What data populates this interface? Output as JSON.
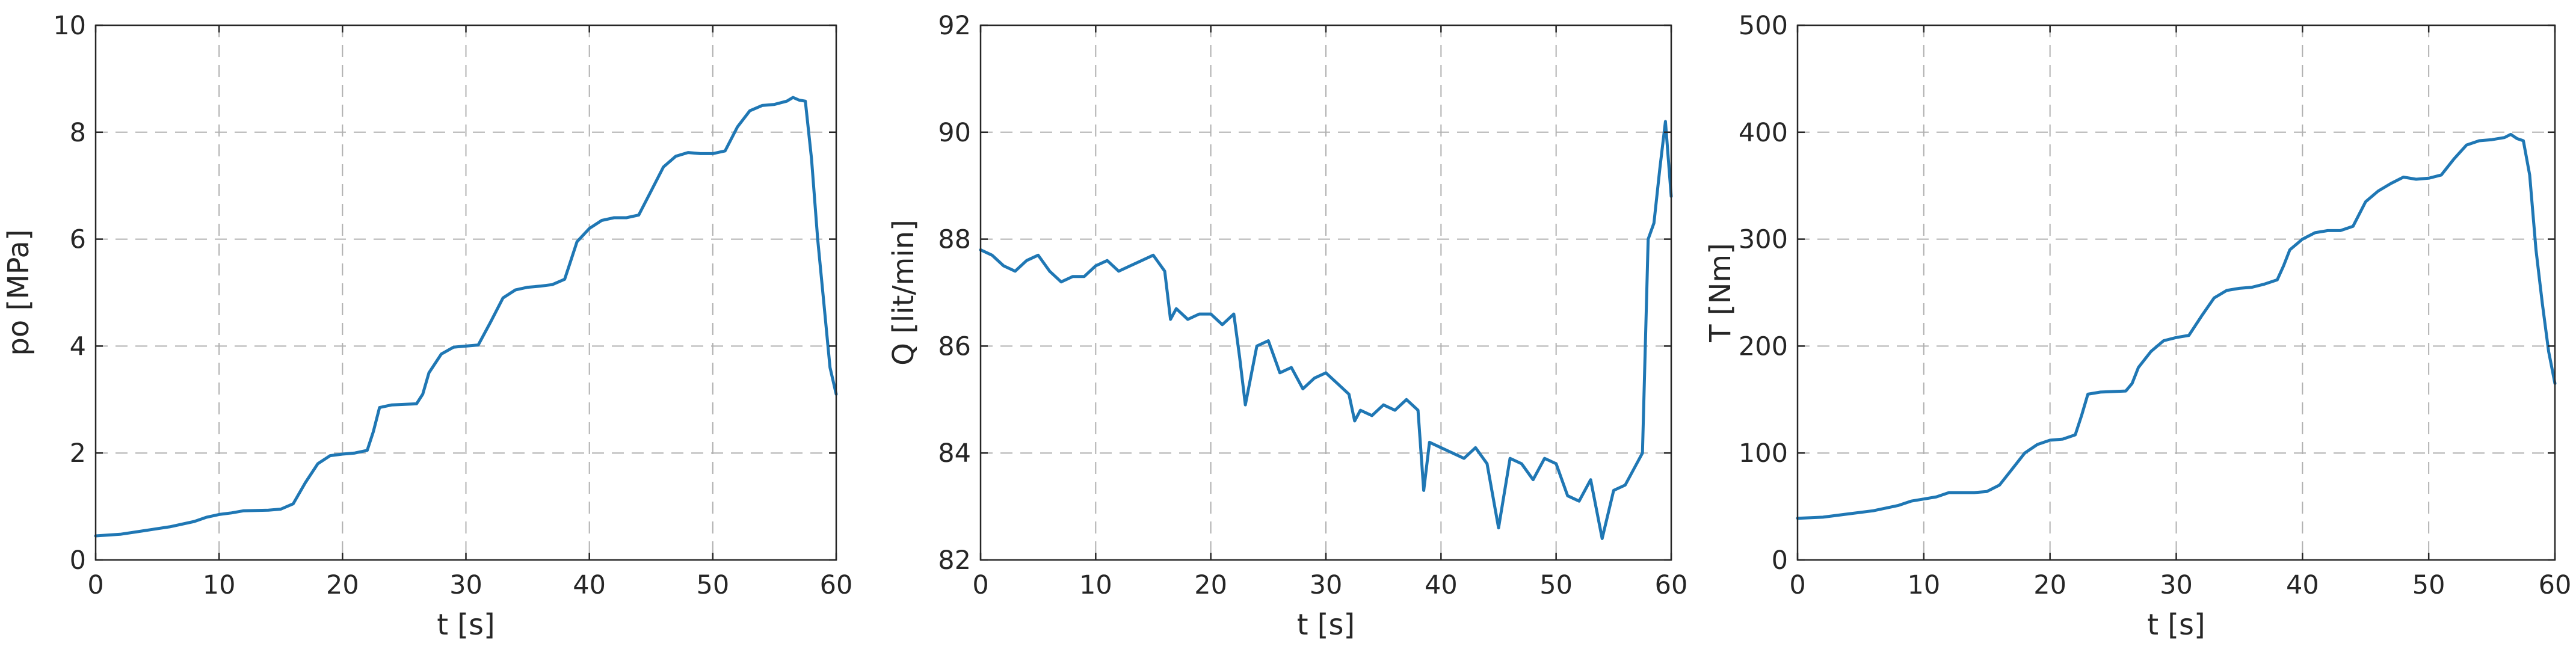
{
  "chart_data": [
    {
      "type": "line",
      "title": "",
      "xlabel": "t [s]",
      "ylabel": "po [MPa]",
      "xlim": [
        0,
        60
      ],
      "ylim": [
        0,
        10
      ],
      "xticks": [
        0,
        10,
        20,
        30,
        40,
        50,
        60
      ],
      "yticks": [
        0,
        2,
        4,
        6,
        8,
        10
      ],
      "grid": true,
      "legend": "none",
      "line_color": "#1f77b4",
      "series": [
        {
          "x": [
            0,
            2,
            4,
            6,
            8,
            9,
            10,
            11,
            12,
            14,
            15,
            16,
            17,
            18,
            19,
            20,
            21,
            22,
            22.5,
            23,
            24,
            26,
            26.5,
            27,
            28,
            29,
            30,
            31,
            32,
            33,
            34,
            35,
            36,
            37,
            38,
            38.5,
            39,
            40,
            41,
            42,
            43,
            44,
            45,
            46,
            47,
            48,
            49,
            50,
            51,
            52,
            53,
            54,
            55,
            56,
            56.5,
            57,
            57.5,
            58,
            58.5,
            59,
            59.5,
            60
          ],
          "y": [
            0.45,
            0.48,
            0.55,
            0.62,
            0.72,
            0.8,
            0.85,
            0.88,
            0.92,
            0.93,
            0.95,
            1.05,
            1.45,
            1.8,
            1.95,
            1.98,
            2.0,
            2.05,
            2.4,
            2.85,
            2.9,
            2.92,
            3.1,
            3.5,
            3.85,
            3.98,
            4.0,
            4.02,
            4.45,
            4.9,
            5.05,
            5.1,
            5.12,
            5.15,
            5.25,
            5.6,
            5.95,
            6.2,
            6.35,
            6.4,
            6.4,
            6.45,
            6.9,
            7.35,
            7.55,
            7.62,
            7.6,
            7.6,
            7.65,
            8.1,
            8.4,
            8.5,
            8.52,
            8.58,
            8.65,
            8.6,
            8.58,
            7.5,
            6.0,
            4.8,
            3.6,
            3.1
          ]
        }
      ]
    },
    {
      "type": "line",
      "title": "",
      "xlabel": "t [s]",
      "ylabel": "Q [lit/min]",
      "xlim": [
        0,
        60
      ],
      "ylim": [
        82,
        92
      ],
      "xticks": [
        0,
        10,
        20,
        30,
        40,
        50,
        60
      ],
      "yticks": [
        82,
        84,
        86,
        88,
        90,
        92
      ],
      "grid": true,
      "legend": "none",
      "line_color": "#1f77b4",
      "series": [
        {
          "x": [
            0,
            1,
            2,
            3,
            4,
            5,
            6,
            7,
            8,
            9,
            10,
            11,
            12,
            13,
            14,
            15,
            16,
            16.5,
            17,
            18,
            19,
            20,
            21,
            22,
            22.5,
            23,
            24,
            25,
            26,
            27,
            28,
            29,
            30,
            31,
            32,
            32.5,
            33,
            34,
            35,
            36,
            37,
            38,
            38.5,
            39,
            40,
            41,
            42,
            43,
            44,
            45,
            46,
            47,
            48,
            49,
            50,
            51,
            52,
            53,
            54,
            55,
            56,
            57,
            57.5,
            58,
            58.5,
            59,
            59.5,
            60
          ],
          "y": [
            87.8,
            87.7,
            87.5,
            87.4,
            87.6,
            87.7,
            87.4,
            87.2,
            87.3,
            87.3,
            87.5,
            87.6,
            87.4,
            87.5,
            87.6,
            87.7,
            87.4,
            86.5,
            86.7,
            86.5,
            86.6,
            86.6,
            86.4,
            86.6,
            85.8,
            84.9,
            86.0,
            86.1,
            85.5,
            85.6,
            85.2,
            85.4,
            85.5,
            85.3,
            85.1,
            84.6,
            84.8,
            84.7,
            84.9,
            84.8,
            85.0,
            84.8,
            83.3,
            84.2,
            84.1,
            84.0,
            83.9,
            84.1,
            83.8,
            82.6,
            83.9,
            83.8,
            83.5,
            83.9,
            83.8,
            83.2,
            83.1,
            83.5,
            82.4,
            83.3,
            83.4,
            83.8,
            84.0,
            88.0,
            88.3,
            89.3,
            90.2,
            88.8
          ]
        }
      ]
    },
    {
      "type": "line",
      "title": "",
      "xlabel": "t [s]",
      "ylabel": "T [Nm]",
      "xlim": [
        0,
        60
      ],
      "ylim": [
        0,
        500
      ],
      "xticks": [
        0,
        10,
        20,
        30,
        40,
        50,
        60
      ],
      "yticks": [
        0,
        100,
        200,
        300,
        400,
        500
      ],
      "grid": true,
      "legend": "none",
      "line_color": "#1f77b4",
      "series": [
        {
          "x": [
            0,
            2,
            4,
            6,
            8,
            9,
            10,
            11,
            12,
            14,
            15,
            16,
            17,
            18,
            19,
            20,
            21,
            22,
            22.5,
            23,
            24,
            26,
            26.5,
            27,
            28,
            29,
            30,
            31,
            32,
            33,
            34,
            35,
            36,
            37,
            38,
            38.5,
            39,
            40,
            41,
            42,
            43,
            44,
            45,
            46,
            47,
            48,
            49,
            50,
            51,
            52,
            53,
            54,
            55,
            56,
            56.5,
            57,
            57.5,
            58,
            58.5,
            59,
            59.5,
            60
          ],
          "y": [
            39,
            40,
            43,
            46,
            51,
            55,
            57,
            59,
            63,
            63,
            64,
            70,
            85,
            100,
            108,
            112,
            113,
            117,
            135,
            155,
            157,
            158,
            165,
            180,
            195,
            205,
            208,
            210,
            228,
            245,
            252,
            254,
            255,
            258,
            262,
            275,
            290,
            300,
            306,
            308,
            308,
            312,
            335,
            345,
            352,
            358,
            356,
            357,
            360,
            375,
            388,
            392,
            393,
            395,
            398,
            394,
            392,
            360,
            290,
            240,
            195,
            165
          ]
        }
      ]
    }
  ]
}
